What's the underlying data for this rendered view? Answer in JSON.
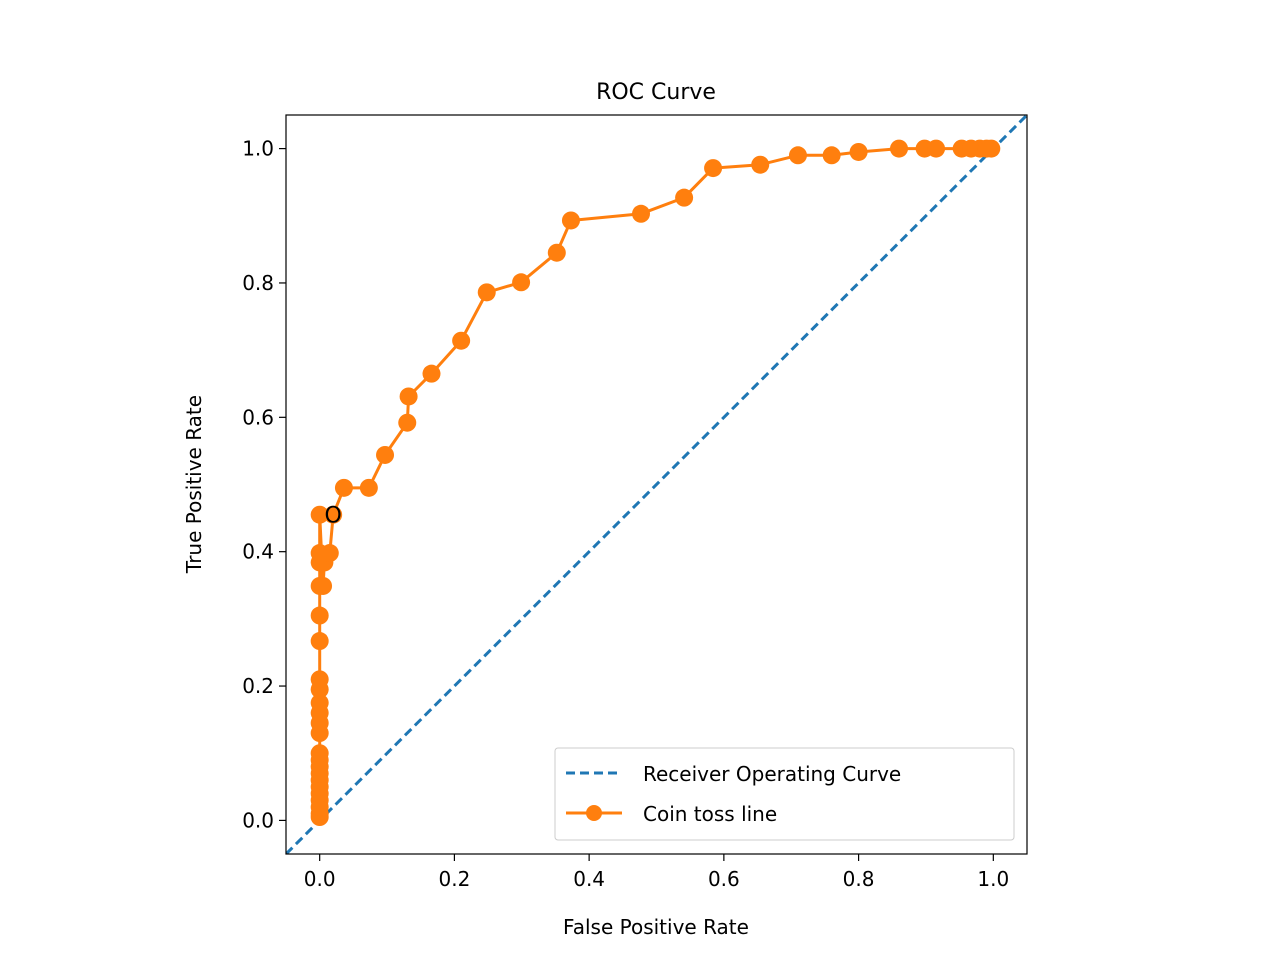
{
  "chart_data": {
    "type": "line",
    "title": "ROC Curve",
    "xlabel": "False Positive Rate",
    "ylabel": "True Positive Rate",
    "xlim": [
      -0.05,
      1.05
    ],
    "ylim": [
      -0.05,
      1.05
    ],
    "xticks": [
      0.0,
      0.2,
      0.4,
      0.6,
      0.8,
      1.0
    ],
    "xtick_labels": [
      "0.0",
      "0.2",
      "0.4",
      "0.6",
      "0.8",
      "1.0"
    ],
    "yticks": [
      0.0,
      0.2,
      0.4,
      0.6,
      0.8,
      1.0
    ],
    "ytick_labels": [
      "0.0",
      "0.2",
      "0.4",
      "0.6",
      "0.8",
      "1.0"
    ],
    "grid": false,
    "legend_position": "lower-right",
    "series": [
      {
        "name": "Receiver Operating Curve",
        "style": "dashed",
        "color": "#1f77b4",
        "x": [
          -0.05,
          1.05
        ],
        "y": [
          -0.05,
          1.05
        ]
      },
      {
        "name": "Coin toss line",
        "style": "solid-markers",
        "color": "#ff7f0e",
        "x": [
          0.0,
          0.0,
          0.0,
          0.0,
          0.0,
          0.0,
          0.0,
          0.0,
          0.0,
          0.0,
          0.0,
          0.0,
          0.0,
          0.0,
          0.0,
          0.0,
          0.0,
          0.0,
          0.0,
          0.0,
          0.0,
          0.0,
          0.0,
          0.005,
          0.007,
          0.015,
          0.02,
          0.036,
          0.073,
          0.097,
          0.13,
          0.132,
          0.166,
          0.21,
          0.248,
          0.299,
          0.352,
          0.373,
          0.477,
          0.541,
          0.584,
          0.654,
          0.71,
          0.76,
          0.8,
          0.86,
          0.898,
          0.915,
          0.953,
          0.967,
          0.98,
          0.99,
          0.997
        ],
        "y": [
          0.005,
          0.01,
          0.02,
          0.03,
          0.04,
          0.05,
          0.06,
          0.07,
          0.08,
          0.09,
          0.1,
          0.13,
          0.145,
          0.16,
          0.175,
          0.195,
          0.21,
          0.267,
          0.305,
          0.349,
          0.384,
          0.398,
          0.455,
          0.349,
          0.384,
          0.398,
          0.455,
          0.495,
          0.495,
          0.544,
          0.592,
          0.631,
          0.665,
          0.714,
          0.786,
          0.801,
          0.845,
          0.893,
          0.903,
          0.927,
          0.971,
          0.976,
          0.99,
          0.99,
          0.995,
          1.0,
          1.0,
          1.0,
          1.0,
          1.0,
          1.0,
          1.0,
          1.0
        ]
      }
    ],
    "annotations": [
      {
        "text": "O",
        "x": 0.02,
        "y": 0.455
      }
    ]
  }
}
